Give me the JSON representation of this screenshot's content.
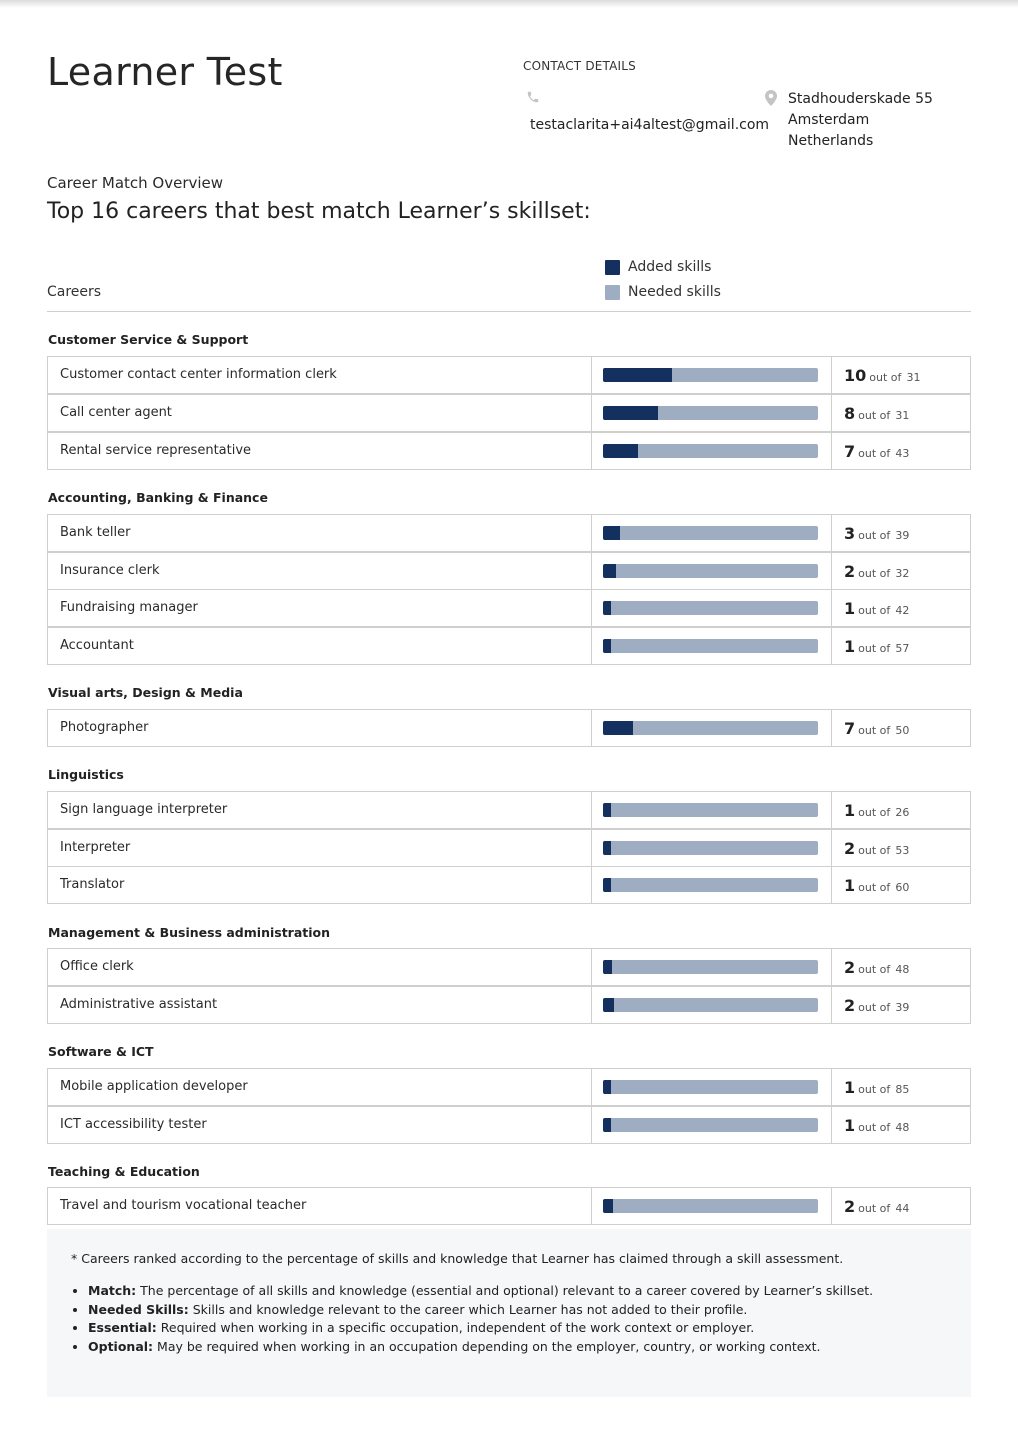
{
  "learner_name": "Learner Test",
  "contact": {
    "title": "CONTACT DETAILS",
    "email": "testaclarita+ai4altest@gmail.com",
    "address": [
      "Stadhouderskade 55",
      "Amsterdam",
      "Netherlands"
    ],
    "phone_icon": "phone-icon",
    "address_icon": "map-pin-icon"
  },
  "overview_label": "Career Match Overview",
  "headline": "Top 16 careers that best match Learner’s skillset:",
  "careers_column_label": "Careers",
  "legend": {
    "added": "Added skills",
    "needed": "Needed skills",
    "added_color": "#14305e",
    "needed_color": "#9eadc2"
  },
  "out_of_label": "out of",
  "categories": [
    {
      "name": "Customer Service & Support",
      "careers": [
        {
          "name": "Customer contact center information clerk",
          "matched": 10,
          "total": 31
        },
        {
          "name": "Call center agent",
          "matched": 8,
          "total": 31
        },
        {
          "name": "Rental service representative",
          "matched": 7,
          "total": 43
        }
      ]
    },
    {
      "name": "Accounting, Banking & Finance",
      "careers": [
        {
          "name": "Bank teller",
          "matched": 3,
          "total": 39
        },
        {
          "name": "Insurance clerk",
          "matched": 2,
          "total": 32
        },
        {
          "name": "Fundraising manager",
          "matched": 1,
          "total": 42
        },
        {
          "name": "Accountant",
          "matched": 1,
          "total": 57
        }
      ]
    },
    {
      "name": "Visual arts, Design & Media",
      "careers": [
        {
          "name": "Photographer",
          "matched": 7,
          "total": 50
        }
      ]
    },
    {
      "name": "Linguistics",
      "careers": [
        {
          "name": "Sign language interpreter",
          "matched": 1,
          "total": 26
        },
        {
          "name": "Interpreter",
          "matched": 2,
          "total": 53
        },
        {
          "name": "Translator",
          "matched": 1,
          "total": 60
        }
      ]
    },
    {
      "name": "Management & Business administration",
      "careers": [
        {
          "name": "Office clerk",
          "matched": 2,
          "total": 48
        },
        {
          "name": "Administrative assistant",
          "matched": 2,
          "total": 39
        }
      ]
    },
    {
      "name": "Software & ICT",
      "careers": [
        {
          "name": "Mobile application developer",
          "matched": 1,
          "total": 85
        },
        {
          "name": "ICT accessibility tester",
          "matched": 1,
          "total": 48
        }
      ]
    },
    {
      "name": "Teaching & Education",
      "careers": [
        {
          "name": "Travel and tourism vocational teacher",
          "matched": 2,
          "total": 44
        }
      ]
    }
  ],
  "footer": {
    "note": "* Careers ranked according to the percentage of skills and knowledge that Learner has claimed through a skill assessment.",
    "definitions": [
      {
        "term": "Match:",
        "text": "The percentage of all skills and knowledge (essential and optional) relevant to a career covered by Learner’s skillset."
      },
      {
        "term": "Needed Skills:",
        "text": "Skills and knowledge relevant to the career which Learner has not added to their profile."
      },
      {
        "term": "Essential:",
        "text": "Required when working in a specific occupation, independent of the work context or employer."
      },
      {
        "term": "Optional:",
        "text": "May be required when working in an occupation depending on the employer, country, or working context."
      }
    ]
  }
}
